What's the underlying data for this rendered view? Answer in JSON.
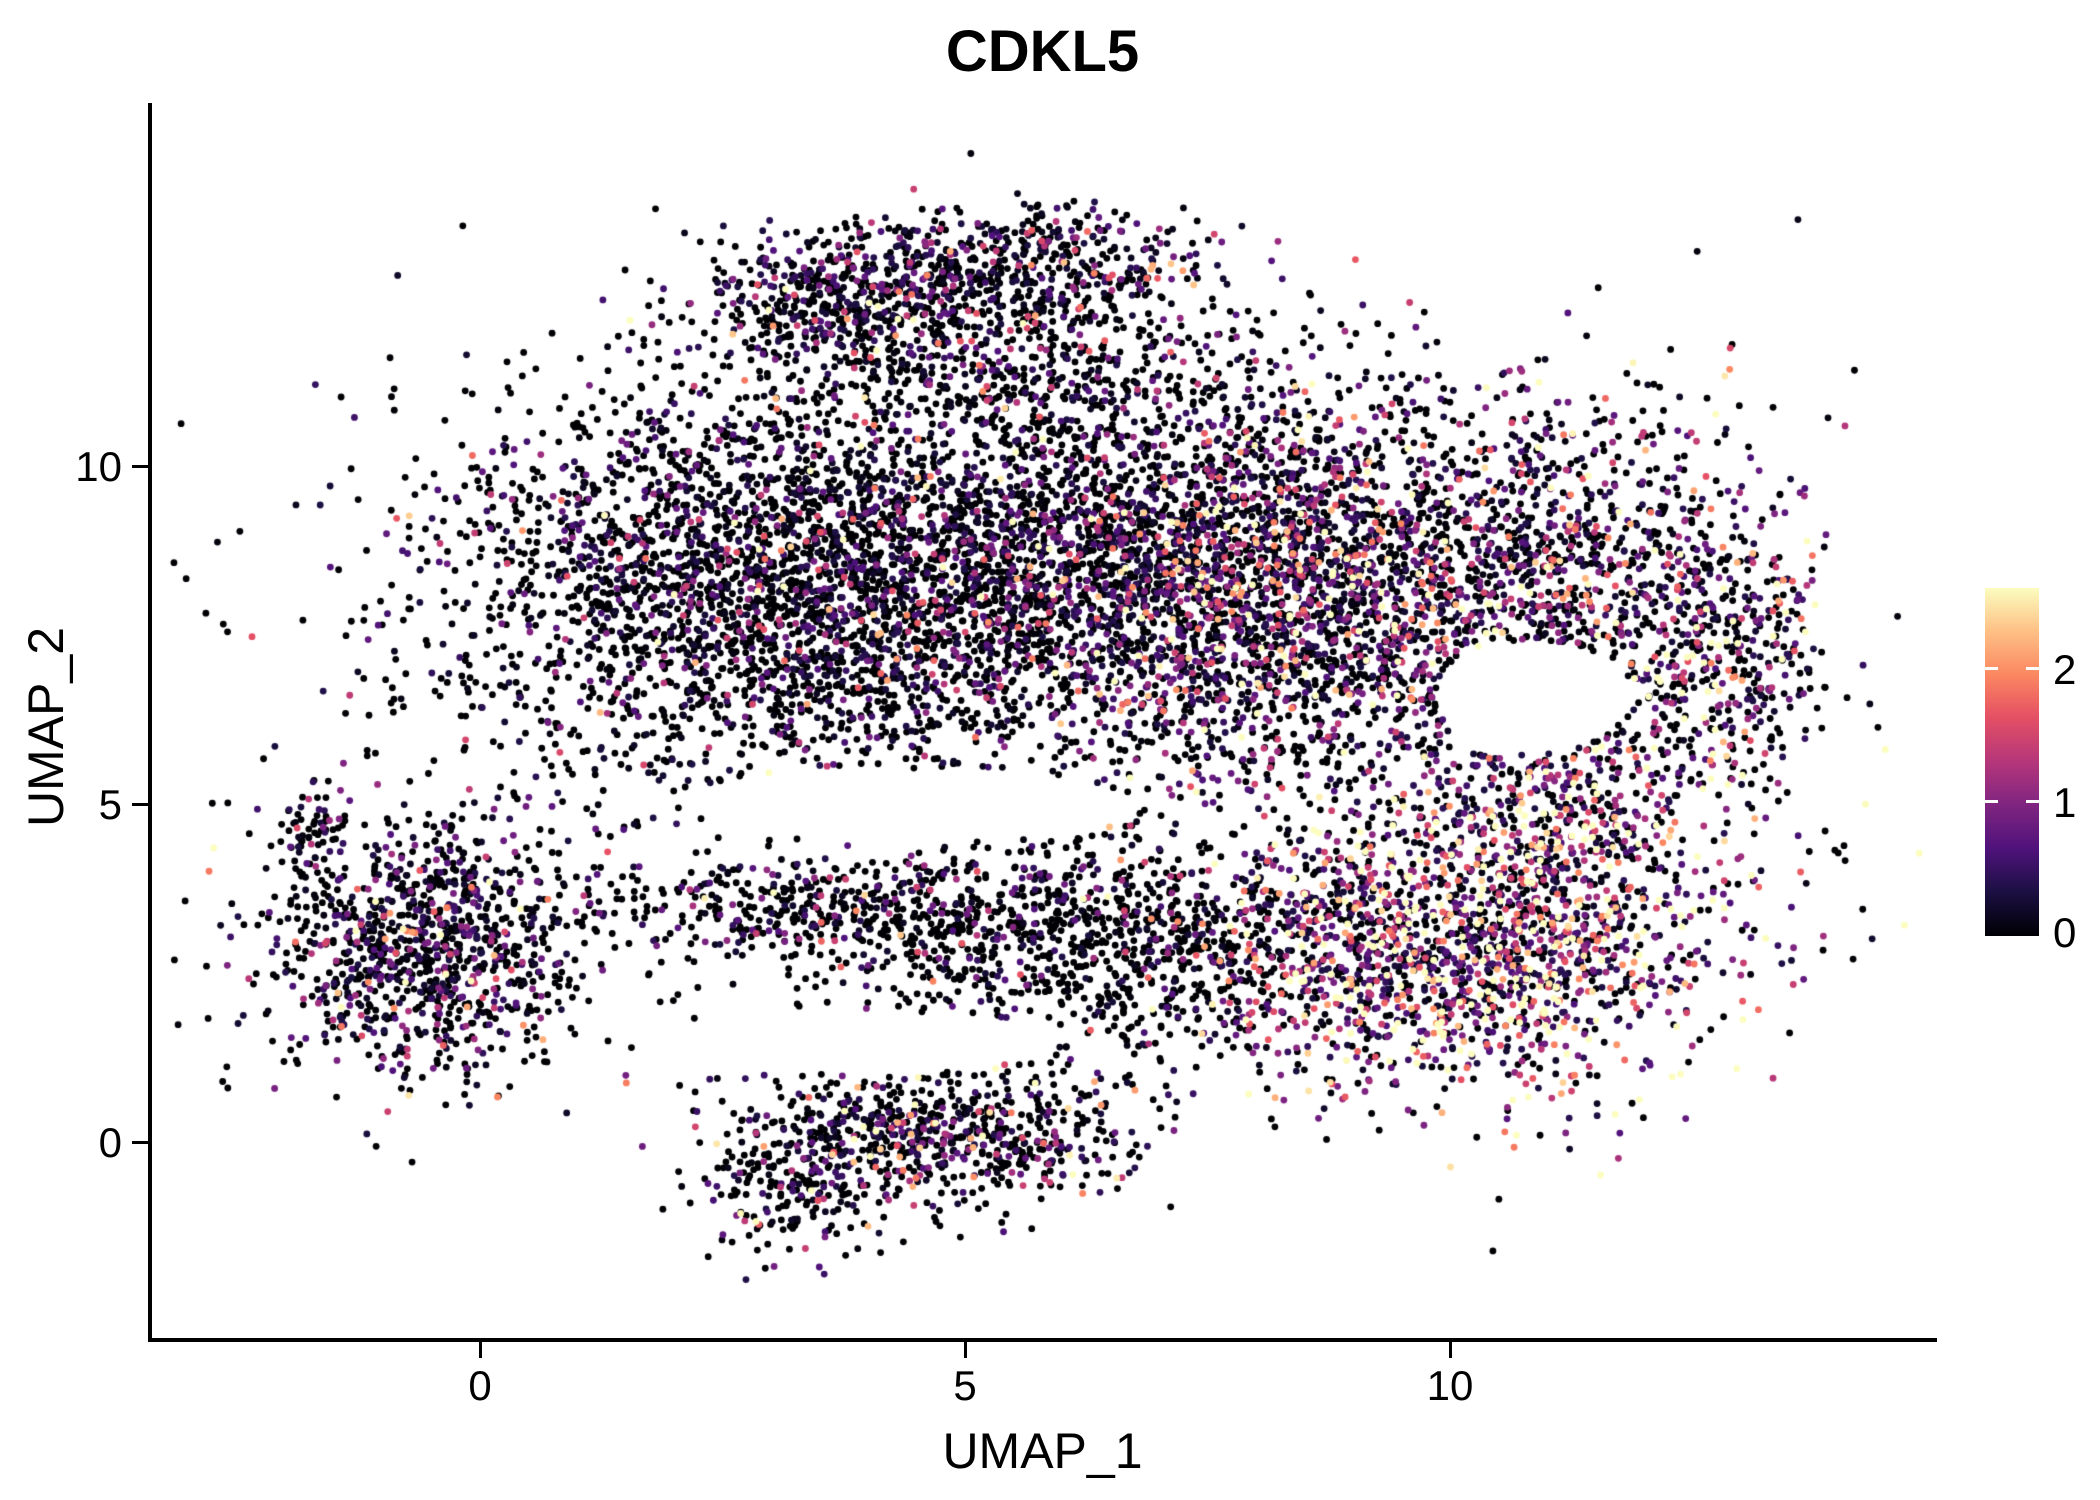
{
  "chart_data": {
    "type": "scatter",
    "title": "CDKL5",
    "xlabel": "UMAP_1",
    "ylabel": "UMAP_2",
    "x_ticks": [
      0,
      5,
      10
    ],
    "y_ticks": [
      0,
      5,
      10
    ],
    "xlim": [
      -3.4,
      15.0
    ],
    "ylim": [
      -2.91,
      15.36
    ],
    "grid": false,
    "background": "#ffffff",
    "point_radius_px": 3.4,
    "seed": 42,
    "legend": {
      "position": "right",
      "ticks": [
        "0",
        "1",
        "2"
      ],
      "min": 0,
      "max": 2.6,
      "colormap": "magma"
    },
    "colormap_stops": [
      {
        "t": 0.0,
        "rgb": [
          0,
          0,
          4
        ]
      },
      {
        "t": 0.13,
        "rgb": [
          28,
          16,
          68
        ]
      },
      {
        "t": 0.25,
        "rgb": [
          79,
          18,
          123
        ]
      },
      {
        "t": 0.38,
        "rgb": [
          129,
          37,
          129
        ]
      },
      {
        "t": 0.5,
        "rgb": [
          181,
          54,
          122
        ]
      },
      {
        "t": 0.63,
        "rgb": [
          229,
          80,
          100
        ]
      },
      {
        "t": 0.75,
        "rgb": [
          251,
          135,
          97
        ]
      },
      {
        "t": 0.88,
        "rgb": [
          254,
          194,
          135
        ]
      },
      {
        "t": 1.0,
        "rgb": [
          252,
          253,
          191
        ]
      }
    ],
    "clusters": [
      {
        "name": "top-ridge-left",
        "cx": 3.6,
        "cy": 12.5,
        "sx": 0.8,
        "sy": 0.5,
        "n": 450,
        "p_zero": 0.5,
        "mean_expr": 0.6
      },
      {
        "name": "top-ridge-right",
        "cx": 5.6,
        "cy": 13.0,
        "sx": 1.0,
        "sy": 0.45,
        "n": 500,
        "p_zero": 0.5,
        "mean_expr": 0.6
      },
      {
        "name": "top-bridge",
        "cx": 5.6,
        "cy": 11.6,
        "sx": 1.3,
        "sy": 0.6,
        "n": 450,
        "p_zero": 0.65,
        "mean_expr": 0.6
      },
      {
        "name": "main-left",
        "cx": 3.0,
        "cy": 8.3,
        "sx": 1.8,
        "sy": 1.5,
        "n": 3200,
        "p_zero": 0.62,
        "mean_expr": 0.55
      },
      {
        "name": "main-center",
        "cx": 5.9,
        "cy": 8.6,
        "sx": 1.3,
        "sy": 1.4,
        "n": 1300,
        "p_zero": 0.65,
        "mean_expr": 0.55
      },
      {
        "name": "main-right",
        "cx": 8.5,
        "cy": 8.3,
        "sx": 1.6,
        "sy": 1.5,
        "n": 2900,
        "p_zero": 0.42,
        "mean_expr": 0.85
      },
      {
        "name": "right-edge",
        "cx": 11.6,
        "cy": 8.2,
        "sx": 1.0,
        "sy": 1.5,
        "n": 800,
        "p_zero": 0.45,
        "mean_expr": 0.95
      },
      {
        "name": "far-right-tip",
        "cx": 13.0,
        "cy": 7.2,
        "sx": 0.45,
        "sy": 1.0,
        "n": 260,
        "p_zero": 0.4,
        "mean_expr": 1.1
      },
      {
        "name": "warm-lower-right",
        "cx": 10.1,
        "cy": 2.9,
        "sx": 1.35,
        "sy": 1.05,
        "n": 1700,
        "p_zero": 0.22,
        "mean_expr": 1.25
      },
      {
        "name": "warm-diagonal",
        "cx": 11.2,
        "cy": 5.0,
        "sx": 0.8,
        "sy": 0.8,
        "n": 400,
        "p_zero": 0.35,
        "mean_expr": 1.3
      },
      {
        "name": "mid-lower-band",
        "cx": 6.4,
        "cy": 2.9,
        "sx": 1.5,
        "sy": 0.75,
        "n": 900,
        "p_zero": 0.75,
        "mean_expr": 0.55
      },
      {
        "name": "thin-band",
        "cx": 3.9,
        "cy": 3.5,
        "sx": 1.6,
        "sy": 0.4,
        "n": 500,
        "p_zero": 0.7,
        "mean_expr": 0.6
      },
      {
        "name": "left-cluster",
        "cx": -0.55,
        "cy": 2.9,
        "sx": 0.85,
        "sy": 0.9,
        "n": 1050,
        "p_zero": 0.55,
        "mean_expr": 0.6
      },
      {
        "name": "left-tip",
        "cx": -1.75,
        "cy": 4.55,
        "sx": 0.22,
        "sy": 0.4,
        "n": 70,
        "p_zero": 0.6,
        "mean_expr": 0.5
      },
      {
        "name": "bottom-cluster",
        "cx": 4.7,
        "cy": 0.15,
        "sx": 1.05,
        "sy": 0.55,
        "n": 750,
        "p_zero": 0.55,
        "mean_expr": 0.85
      },
      {
        "name": "bottom-tail",
        "cx": 3.2,
        "cy": -0.8,
        "sx": 0.5,
        "sy": 0.45,
        "n": 160,
        "p_zero": 0.6,
        "mean_expr": 0.7
      },
      {
        "name": "sparse-fill",
        "cx": 7.0,
        "cy": 6.8,
        "sx": 3.5,
        "sy": 2.6,
        "n": 350,
        "p_zero": 0.7,
        "mean_expr": 0.6
      }
    ],
    "holes": [
      {
        "cx": 10.85,
        "cy": 6.6,
        "rx": 1.0,
        "ry": 0.85
      },
      {
        "cx": 4.5,
        "cy": 5.0,
        "rx": 2.2,
        "ry": 0.55
      },
      {
        "cx": 4.2,
        "cy": 1.5,
        "rx": 1.8,
        "ry": 0.45
      }
    ]
  }
}
